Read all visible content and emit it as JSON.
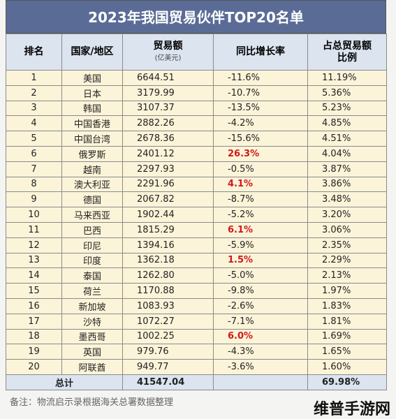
{
  "title": "2023年我国贸易伙伴TOP20名单",
  "table": {
    "header": [
      "排名",
      "国家/地区",
      {
        "text": "贸易额",
        "note": "(亿美元)"
      },
      "同比增长率",
      "占总贸易额比例"
    ],
    "rows": [
      [
        "1",
        "美国",
        "6644.51",
        "-11.6%",
        "11.19%"
      ],
      [
        "2",
        "日本",
        "3179.99",
        "-10.7%",
        "5.36%"
      ],
      [
        "3",
        "韩国",
        "3107.37",
        "-13.5%",
        "5.23%"
      ],
      [
        "4",
        "中国香港",
        "2882.26",
        "-4.2%",
        "4.85%"
      ],
      [
        "5",
        "中国台湾",
        "2678.36",
        "-15.6%",
        "4.51%"
      ],
      [
        "6",
        "俄罗斯",
        "2401.12",
        "26.3%",
        "4.04%"
      ],
      [
        "7",
        "越南",
        "2297.93",
        "-0.5%",
        "3.87%"
      ],
      [
        "8",
        "澳大利亚",
        "2291.96",
        "4.1%",
        "3.86%"
      ],
      [
        "9",
        "德国",
        "2067.82",
        "-8.7%",
        "3.48%"
      ],
      [
        "10",
        "马来西亚",
        "1902.44",
        "-5.2%",
        "3.20%"
      ],
      [
        "11",
        "巴西",
        "1815.29",
        "6.1%",
        "3.06%"
      ],
      [
        "12",
        "印尼",
        "1394.16",
        "-5.9%",
        "2.35%"
      ],
      [
        "13",
        "印度",
        "1362.18",
        "1.5%",
        "2.29%"
      ],
      [
        "14",
        "泰国",
        "1262.80",
        "-5.0%",
        "2.13%"
      ],
      [
        "15",
        "荷兰",
        "1170.88",
        "-9.8%",
        "1.97%"
      ],
      [
        "16",
        "新加坡",
        "1083.93",
        "-2.6%",
        "1.83%"
      ],
      [
        "17",
        "沙特",
        "1072.27",
        "-7.1%",
        "1.81%"
      ],
      [
        "18",
        "墨西哥",
        "1002.25",
        "6.0%",
        "1.69%"
      ],
      [
        "19",
        "英国",
        "979.76",
        "-4.3%",
        "1.65%"
      ],
      [
        "20",
        "阿联酋",
        "949.77",
        "-3.6%",
        "1.60%"
      ]
    ],
    "total": {
      "label": "总计",
      "trade": "41547.04",
      "share": "69.98%"
    }
  },
  "footer": {
    "note": "备注：物流启示录根据海关总署数据整理",
    "watermark": "维普手游网"
  }
}
